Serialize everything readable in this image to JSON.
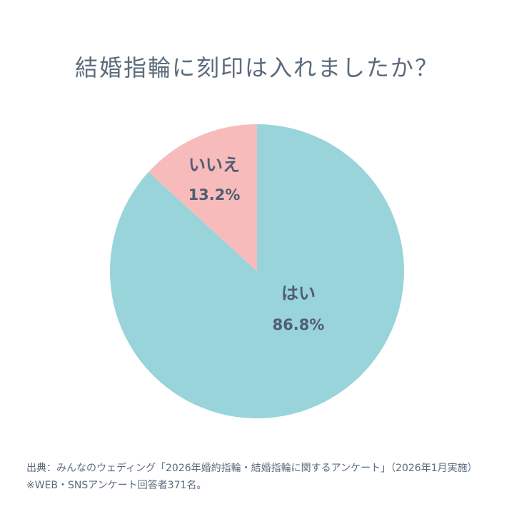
{
  "chart_data": {
    "type": "pie",
    "title": "結婚指輪に刻印は入れましたか？",
    "categories": [
      "はい",
      "いいえ"
    ],
    "values": [
      86.8,
      13.2
    ],
    "value_labels": [
      "86.8%",
      "13.2%"
    ],
    "colors": [
      "#98d4da",
      "#f8bbbb"
    ]
  },
  "footer": {
    "source": "出典：みんなのウェディング「2026年婚約指輪・結婚指輪に関するアンケート」（2026年1月実施）",
    "note": "※WEB・SNSアンケート回答者371名。"
  }
}
